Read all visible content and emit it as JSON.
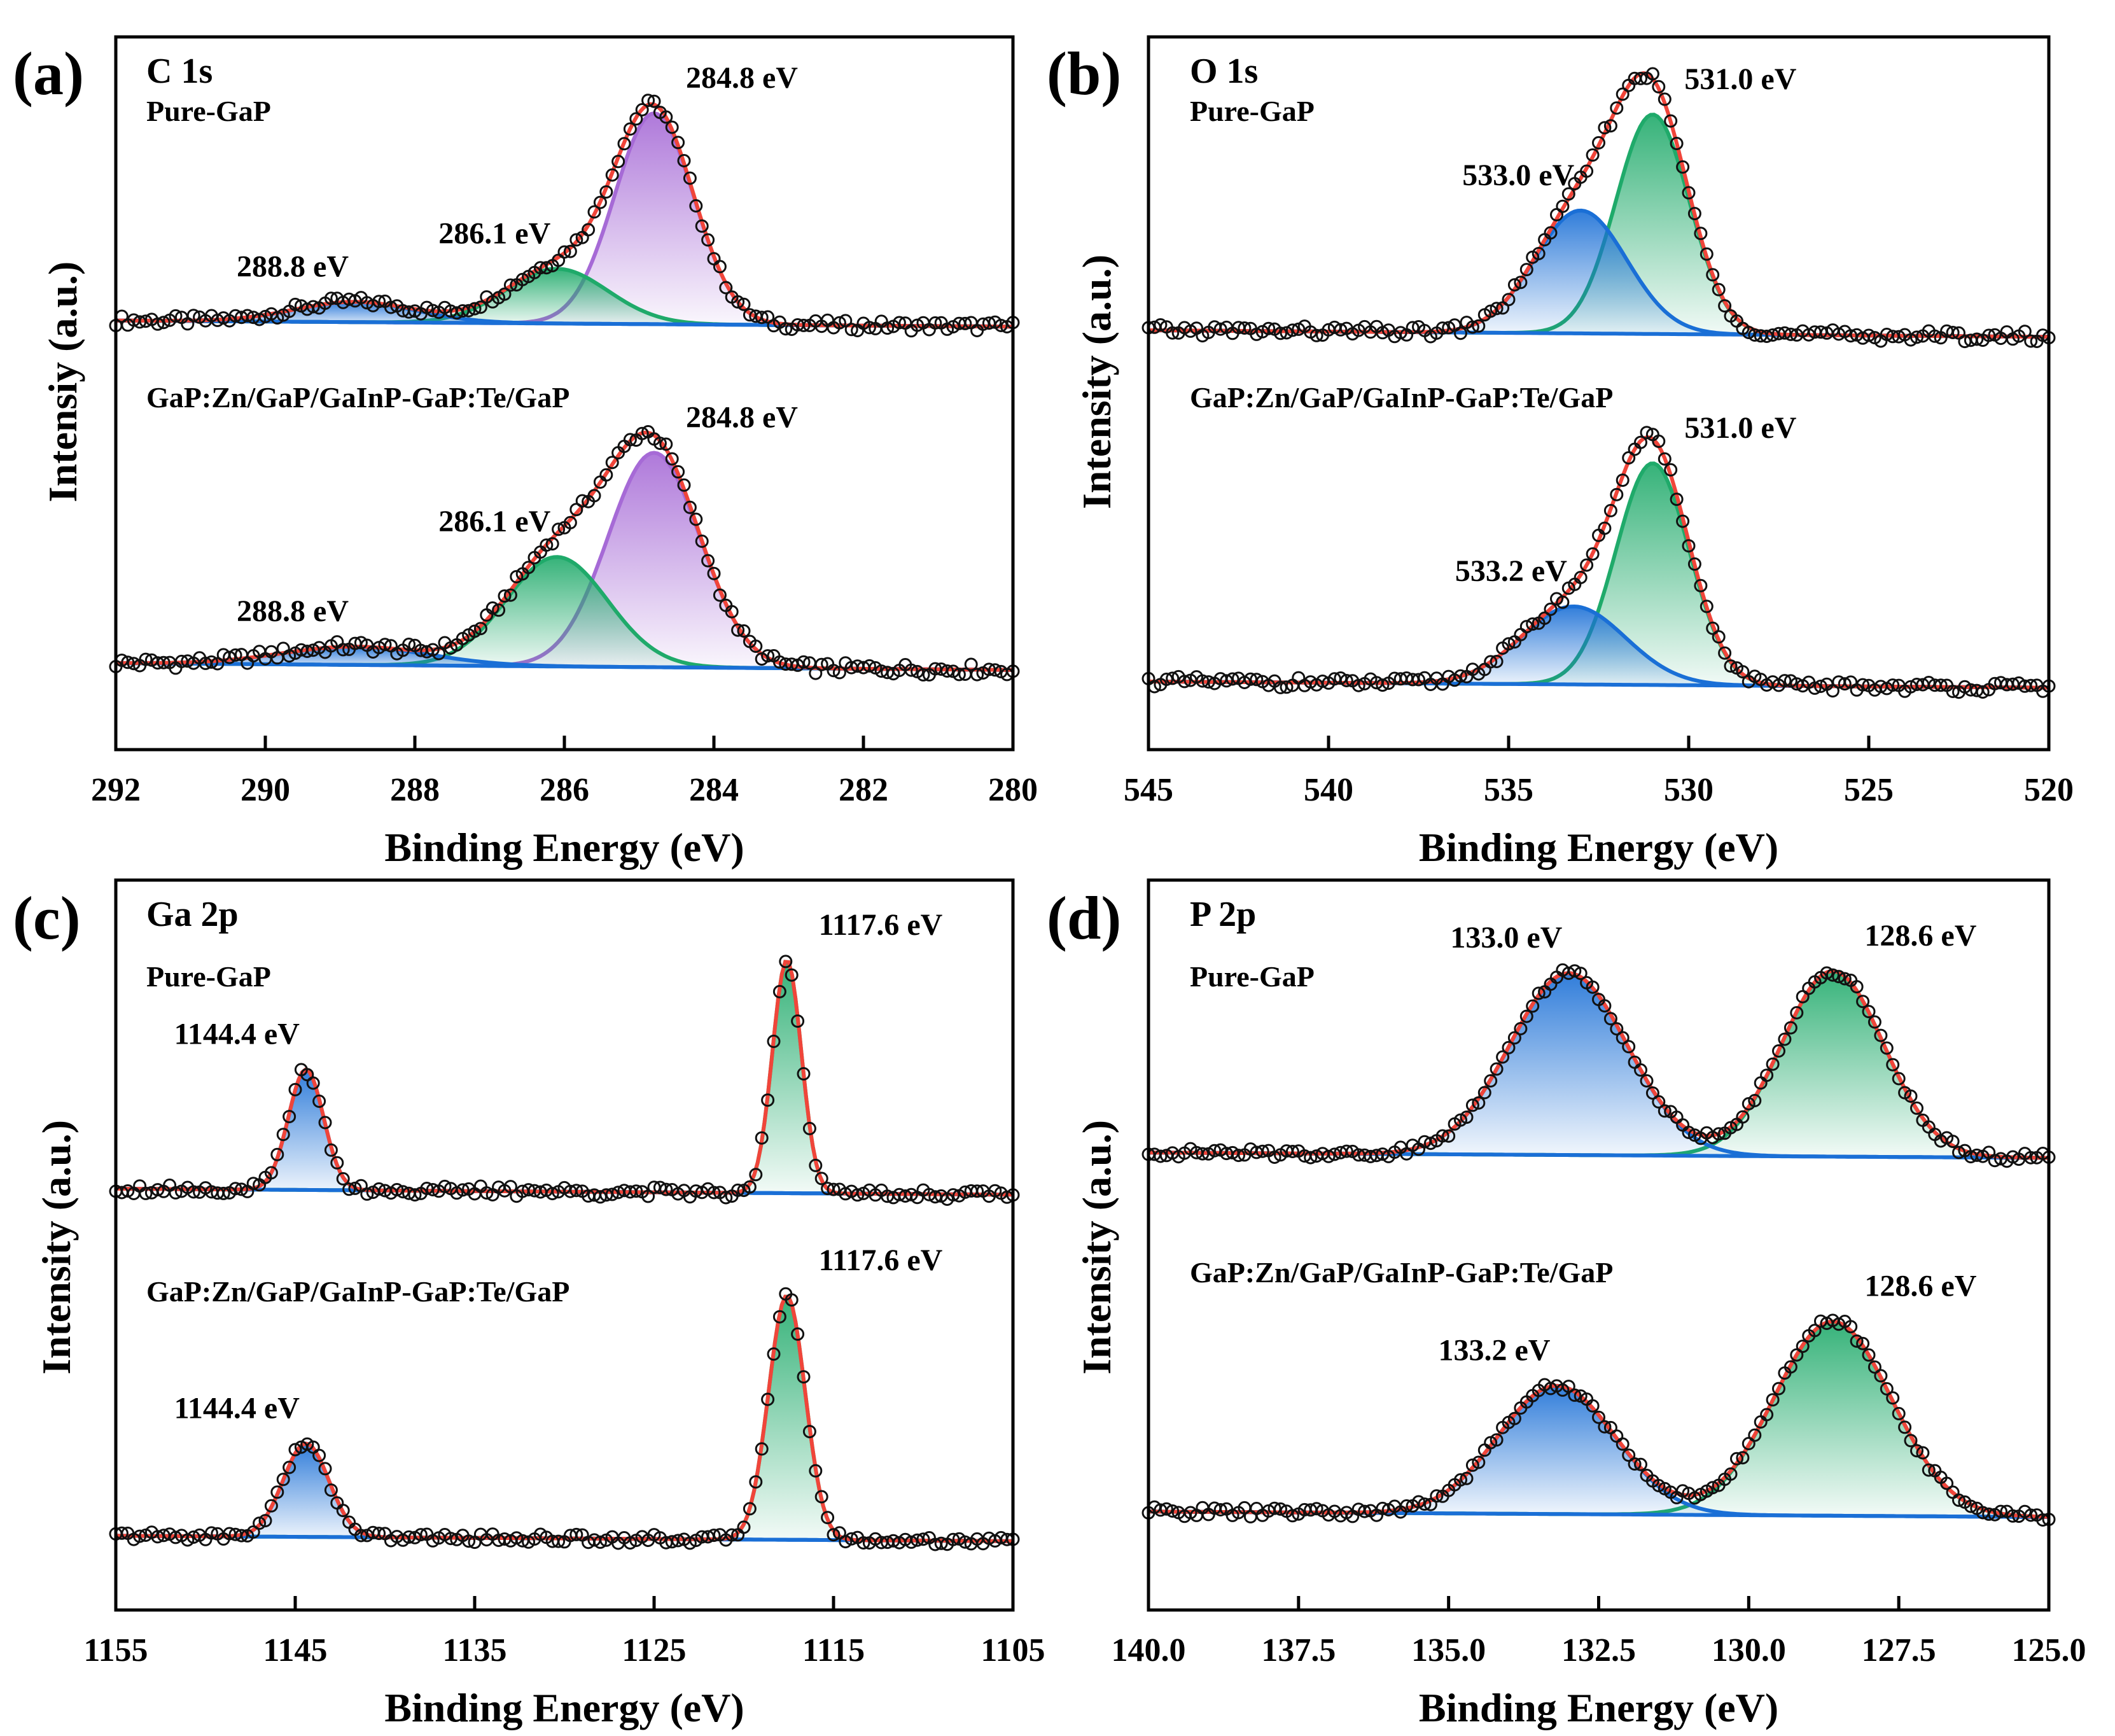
{
  "figure": {
    "xlabel": "Binding Energy (eV)",
    "ylabel_common": "Intensity (a.u.)"
  },
  "chart_data": [
    {
      "type": "line",
      "panel": "(a)",
      "title": "C 1s",
      "ylabel": "Intensiy (a.u.)",
      "xlabel": "Binding Energy (eV)",
      "xlim": [
        292,
        280
      ],
      "xticks": [
        292,
        290,
        288,
        286,
        284,
        282,
        280
      ],
      "colors": {
        "peak1": "#a66ad6",
        "peak2": "#1faa6a",
        "peak3": "#1a6fd6",
        "envelope": "#f0453a",
        "background": "#1a6fd6"
      },
      "samples": [
        {
          "name": "Pure-GaP",
          "baseline": 0.42,
          "peaks": [
            {
              "center": 284.8,
              "fwhm": 1.25,
              "amp": 5.2,
              "label": "284.8 eV",
              "color": "peak1"
            },
            {
              "center": 286.1,
              "fwhm": 1.6,
              "amp": 1.35,
              "label": "286.1 eV",
              "color": "peak2"
            },
            {
              "center": 288.8,
              "fwhm": 1.9,
              "amp": 0.5,
              "label": "288.8 eV",
              "color": "peak3"
            }
          ]
        },
        {
          "name": "GaP:Zn/GaP/GaInP-GaP:Te/GaP",
          "baseline": 0.45,
          "peaks": [
            {
              "center": 284.8,
              "fwhm": 1.45,
              "amp": 4.7,
              "label": "284.8 eV",
              "color": "peak1"
            },
            {
              "center": 286.1,
              "fwhm": 1.6,
              "amp": 2.4,
              "label": "286.1 eV",
              "color": "peak2"
            },
            {
              "center": 288.8,
              "fwhm": 2.3,
              "amp": 0.4,
              "label": "288.8 eV",
              "color": "peak3"
            }
          ]
        }
      ]
    },
    {
      "type": "line",
      "panel": "(b)",
      "title": "O 1s",
      "ylabel": "Intensity (a.u.)",
      "xlabel": "Binding Energy (eV)",
      "xlim": [
        545,
        520
      ],
      "xticks": [
        545,
        540,
        535,
        530,
        525,
        520
      ],
      "colors": {
        "peak1": "#1faa6a",
        "peak2": "#1a6fd6",
        "envelope": "#f0453a",
        "background": "#1a6fd6"
      },
      "samples": [
        {
          "name": "Pure-GaP",
          "baseline": 0.3,
          "peaks": [
            {
              "center": 531.0,
              "fwhm": 2.4,
              "amp": 5.0,
              "label": "531.0 eV",
              "color": "peak1"
            },
            {
              "center": 533.0,
              "fwhm": 3.0,
              "amp": 2.8,
              "label": "533.0 eV",
              "color": "peak2"
            }
          ]
        },
        {
          "name": "GaP:Zn/GaP/GaInP-GaP:Te/GaP",
          "baseline": 0.3,
          "peaks": [
            {
              "center": 531.0,
              "fwhm": 2.4,
              "amp": 5.4,
              "label": "531.0 eV",
              "color": "peak1"
            },
            {
              "center": 533.2,
              "fwhm": 3.4,
              "amp": 1.9,
              "label": "533.2 eV",
              "color": "peak2"
            }
          ]
        }
      ]
    },
    {
      "type": "line",
      "panel": "(c)",
      "title": "Ga 2p",
      "ylabel": "Intensity (a.u.)",
      "xlabel": "Binding Energy (eV)",
      "xlim": [
        1155,
        1105
      ],
      "xticks": [
        1155,
        1145,
        1135,
        1125,
        1115,
        1105
      ],
      "colors": {
        "peak1": "#1faa6a",
        "peak2": "#1a6fd6",
        "envelope": "#f0453a",
        "background": "#1a6fd6"
      },
      "samples": [
        {
          "name": "Pure-GaP",
          "baseline": 0.2,
          "peaks": [
            {
              "center": 1117.6,
              "fwhm": 1.9,
              "amp": 5.8,
              "label": "1117.6 eV",
              "color": "peak1"
            },
            {
              "center": 1144.4,
              "fwhm": 2.3,
              "amp": 3.0,
              "label": "1144.4 eV",
              "color": "peak2"
            }
          ]
        },
        {
          "name": "GaP:Zn/GaP/GaInP-GaP:Te/GaP",
          "baseline": 0.5,
          "peaks": [
            {
              "center": 1117.6,
              "fwhm": 2.4,
              "amp": 6.8,
              "label": "1117.6 eV",
              "color": "peak1"
            },
            {
              "center": 1144.4,
              "fwhm": 3.0,
              "amp": 2.6,
              "label": "1144.4 eV",
              "color": "peak2"
            }
          ]
        }
      ]
    },
    {
      "type": "line",
      "panel": "(d)",
      "title": "P 2p",
      "ylabel": "Intensity (a.u.)",
      "xlabel": "Binding Energy (eV)",
      "xlim": [
        140,
        125
      ],
      "xticks": [
        140.0,
        137.5,
        135.0,
        132.5,
        130.0,
        127.5,
        125.0
      ],
      "colors": {
        "peak1": "#1faa6a",
        "peak2": "#1a6fd6",
        "envelope": "#f0453a",
        "background": "#1a6fd6"
      },
      "samples": [
        {
          "name": "Pure-GaP",
          "baseline": 0.9,
          "peaks": [
            {
              "center": 128.6,
              "fwhm": 2.0,
              "amp": 5.2,
              "label": "128.6 eV",
              "color": "peak1"
            },
            {
              "center": 133.0,
              "fwhm": 2.3,
              "amp": 5.1,
              "label": "133.0 eV",
              "color": "peak2"
            }
          ]
        },
        {
          "name": "GaP:Zn/GaP/GaInP-GaP:Te/GaP",
          "baseline": 0.8,
          "peaks": [
            {
              "center": 128.6,
              "fwhm": 2.3,
              "amp": 5.3,
              "label": "128.6 eV",
              "color": "peak1"
            },
            {
              "center": 133.2,
              "fwhm": 2.3,
              "amp": 3.5,
              "label": "133.2 eV",
              "color": "peak2"
            }
          ]
        }
      ]
    }
  ]
}
